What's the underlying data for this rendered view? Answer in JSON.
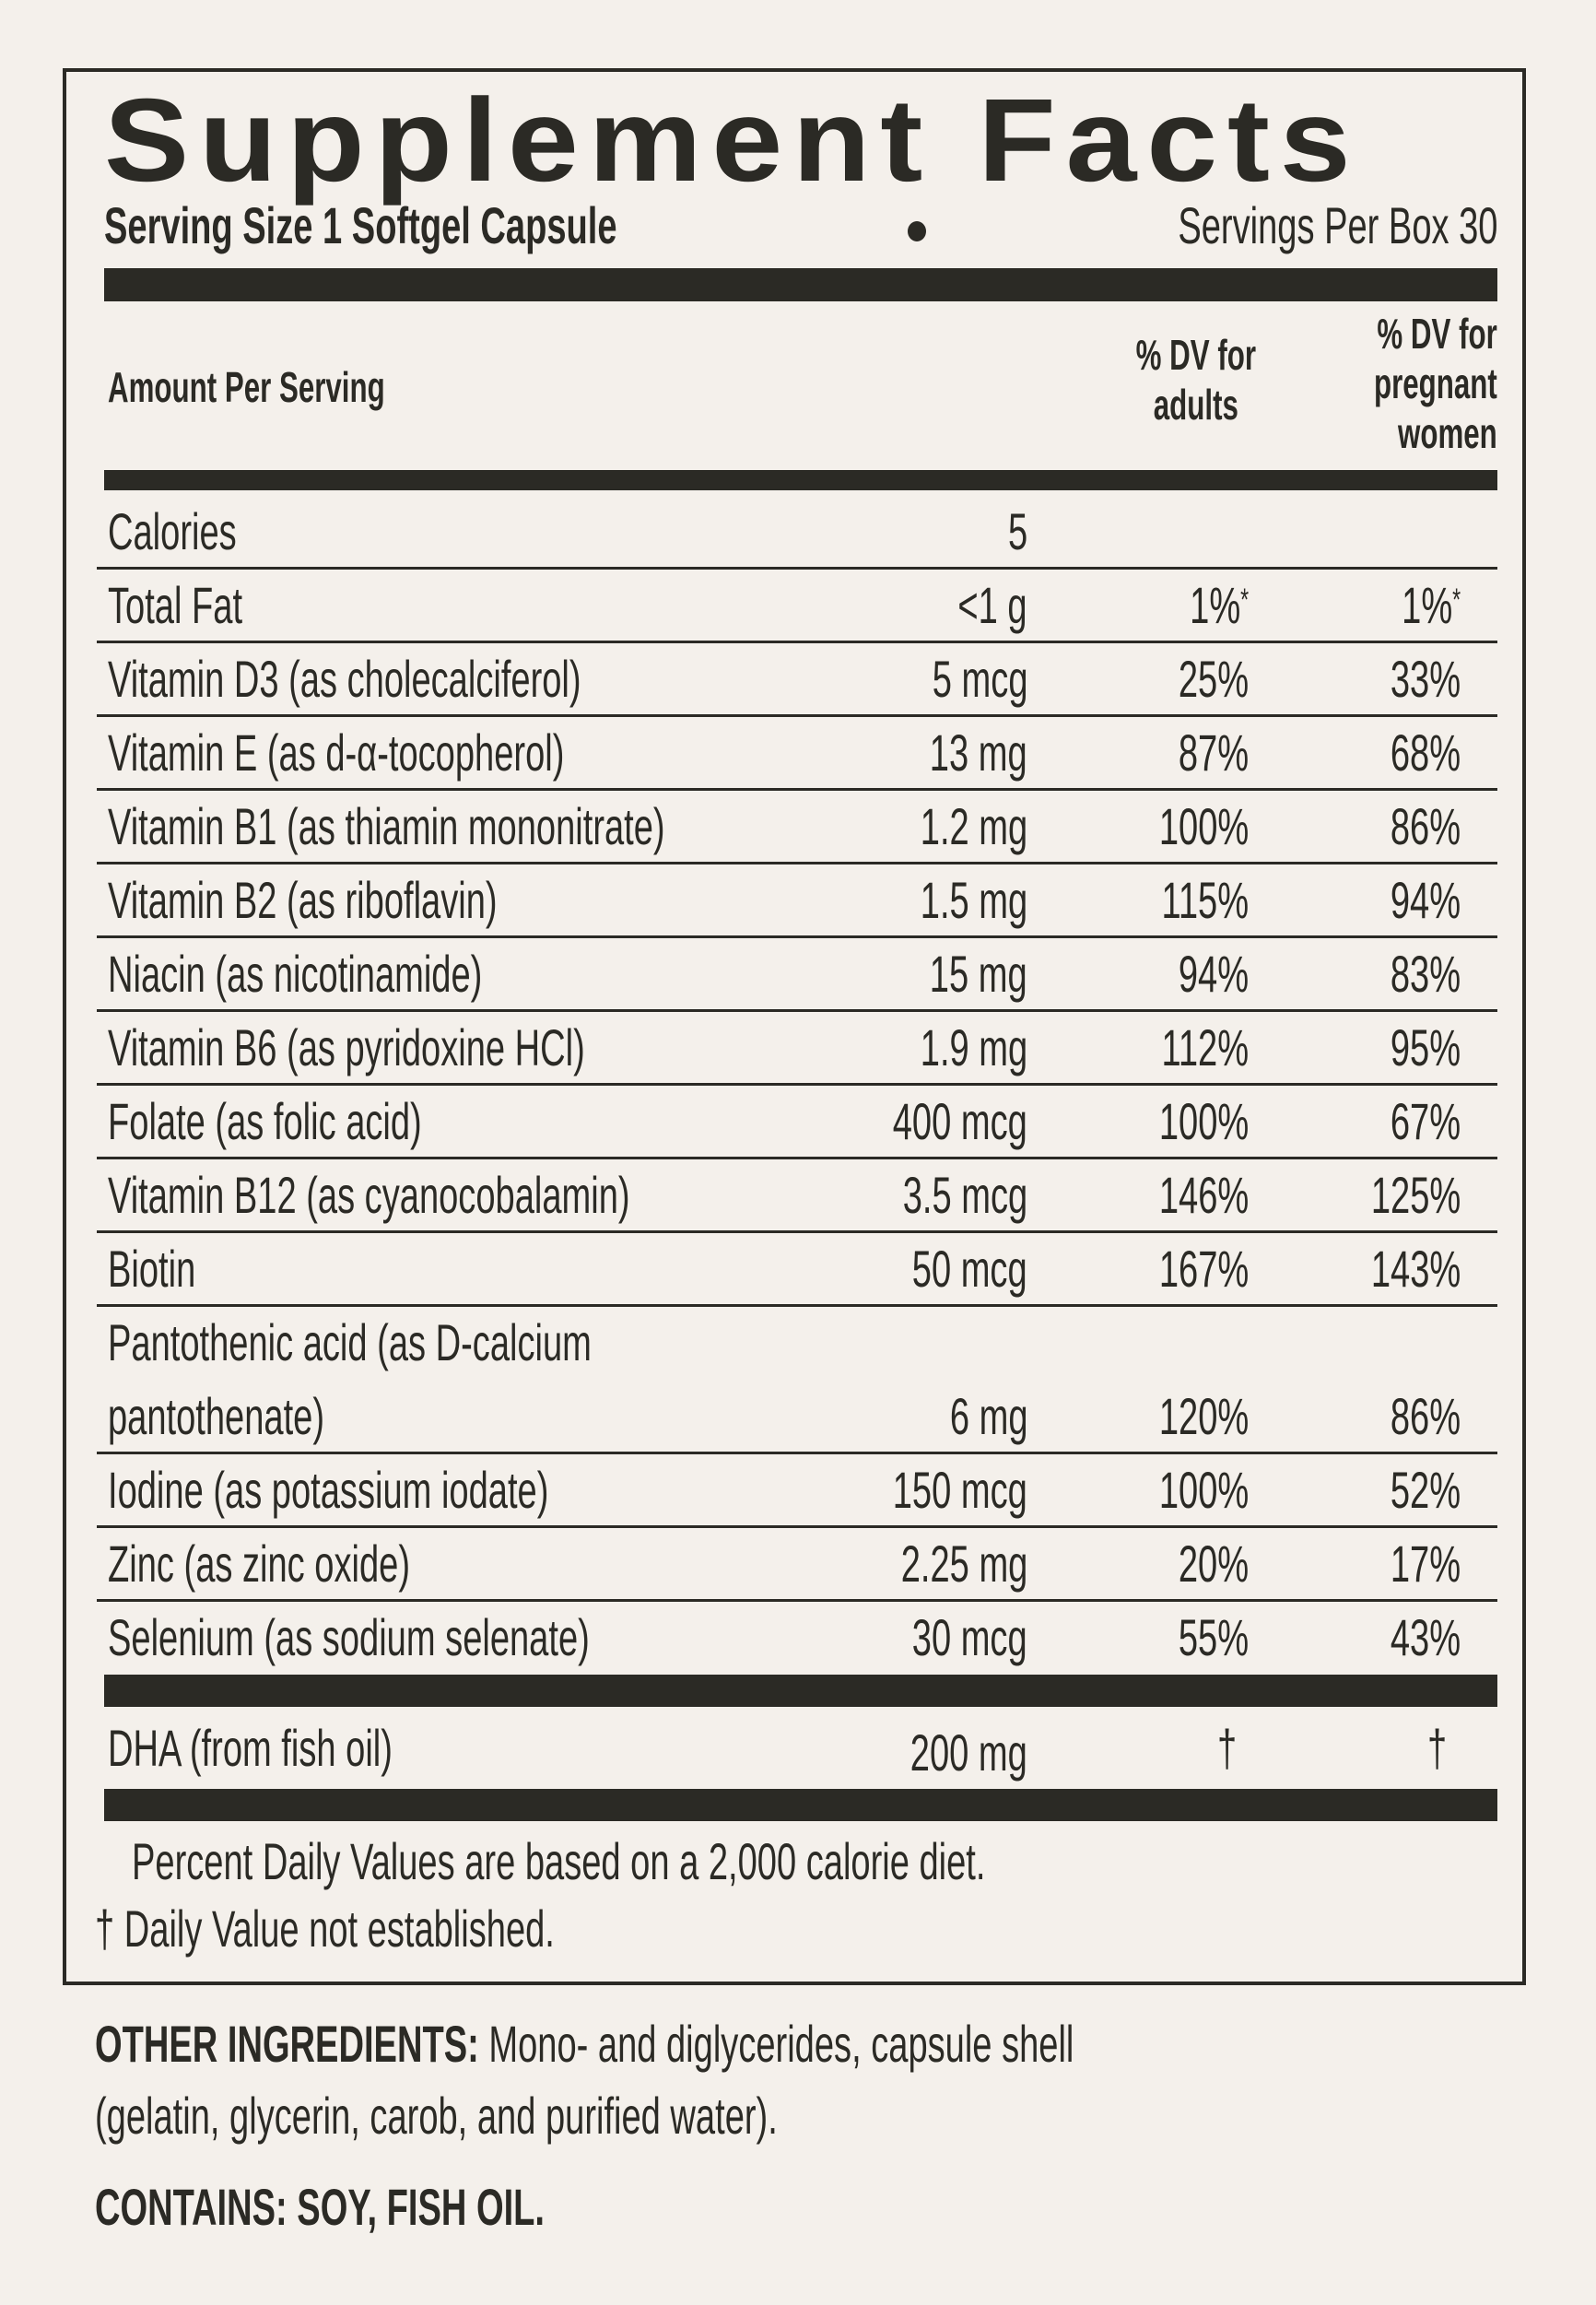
{
  "title": "Supplement Facts",
  "serving_size": "Serving Size 1 Softgel Capsule",
  "servings_per_box": "Servings Per Box 30",
  "header": {
    "amount_per_serving": "Amount Per Serving",
    "dv_adults": "% DV for\nadults",
    "dv_pregnant": "% DV for\npregnant\nwomen"
  },
  "calories": {
    "label": "Calories",
    "value": "5"
  },
  "rows": [
    {
      "name": "Total Fat",
      "amount": "<1 g",
      "dv_adults": "1%",
      "dv_pregnant": "1%",
      "mark": "*"
    },
    {
      "name": "Vitamin D3 (as cholecalciferol)",
      "amount": "5 mcg",
      "dv_adults": "25%",
      "dv_pregnant": "33%"
    },
    {
      "name": "Vitamin E (as d-α-tocopherol)",
      "amount": "13 mg",
      "dv_adults": "87%",
      "dv_pregnant": "68%"
    },
    {
      "name": "Vitamin B1 (as thiamin mononitrate)",
      "amount": "1.2 mg",
      "dv_adults": "100%",
      "dv_pregnant": "86%"
    },
    {
      "name": "Vitamin B2 (as riboflavin)",
      "amount": "1.5 mg",
      "dv_adults": "115%",
      "dv_pregnant": "94%"
    },
    {
      "name": "Niacin (as nicotinamide)",
      "amount": "15 mg",
      "dv_adults": "94%",
      "dv_pregnant": "83%"
    },
    {
      "name": "Vitamin B6 (as pyridoxine HCl)",
      "amount": "1.9 mg",
      "dv_adults": "112%",
      "dv_pregnant": "95%"
    },
    {
      "name": "Folate (as folic acid)",
      "amount": "400 mcg",
      "dv_adults": "100%",
      "dv_pregnant": "67%"
    },
    {
      "name": "Vitamin B12 (as cyanocobalamin)",
      "amount": "3.5 mcg",
      "dv_adults": "146%",
      "dv_pregnant": "125%"
    },
    {
      "name": "Biotin",
      "amount": "50 mcg",
      "dv_adults": "167%",
      "dv_pregnant": "143%"
    },
    {
      "name": "Pantothenic acid (as D-calcium\npantothenate)",
      "amount": "6 mg",
      "dv_adults": "120%",
      "dv_pregnant": "86%"
    },
    {
      "name": "Iodine (as potassium iodate)",
      "amount": "150 mcg",
      "dv_adults": "100%",
      "dv_pregnant": "52%"
    },
    {
      "name": "Zinc (as zinc oxide)",
      "amount": "2.25 mg",
      "dv_adults": "20%",
      "dv_pregnant": "17%"
    },
    {
      "name": "Selenium (as sodium selenate)",
      "amount": "30 mcg",
      "dv_adults": "55%",
      "dv_pregnant": "43%"
    }
  ],
  "dha": {
    "name": "DHA (from fish oil)",
    "amount": "200 mg",
    "dv_adults": "†",
    "dv_pregnant": "†"
  },
  "footnotes": {
    "percent_dv": "Percent Daily Values are based on a 2,000 calorie diet.",
    "dagger_symbol": "†",
    "dagger": "Daily Value not established."
  },
  "other_ingredients": {
    "label": "OTHER INGREDIENTS:",
    "line1": "Mono- and diglycerides, capsule shell",
    "line2": "(gelatin, glycerin, carob, and purified water)."
  },
  "contains": {
    "label": "CONTAINS:",
    "value": "SOY, FISH OIL."
  }
}
